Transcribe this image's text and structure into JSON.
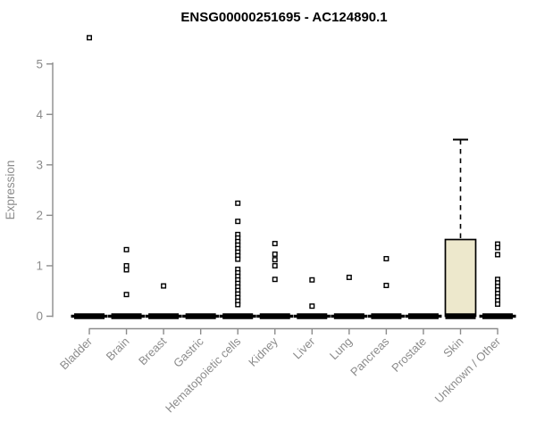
{
  "title": "ENSG00000251695 - AC124890.1",
  "colors": {
    "background": "#FFFFFF",
    "box_fill": "#EDE8CC",
    "axis": "#8C8C8C",
    "tick_label": "#8C8C8C",
    "title": "#000000",
    "data": "#000000",
    "outlier_fill": "#FFFFFF"
  },
  "chart_data": {
    "type": "boxplot",
    "title": "ENSG00000251695 - AC124890.1",
    "xlabel": "",
    "ylabel": "Expression",
    "ylim": [
      0,
      5.6
    ],
    "yticks": [
      0,
      1,
      2,
      3,
      4,
      5
    ],
    "grid": false,
    "legend": "none",
    "categories": [
      "Bladder",
      "Brain",
      "Breast",
      "Gastric",
      "Hematopoietic cells",
      "Kidney",
      "Liver",
      "Lung",
      "Pancreas",
      "Prostate",
      "Skin",
      "Unknown / Other"
    ],
    "series": [
      {
        "name": "Bladder",
        "q1": 0,
        "median": 0,
        "q3": 0,
        "whisker_low": 0,
        "whisker_high": 0,
        "outliers": [
          5.52
        ]
      },
      {
        "name": "Brain",
        "q1": 0,
        "median": 0,
        "q3": 0,
        "whisker_low": 0,
        "whisker_high": 0,
        "outliers": [
          1.32,
          1.0,
          0.92,
          0.43
        ]
      },
      {
        "name": "Breast",
        "q1": 0,
        "median": 0,
        "q3": 0,
        "whisker_low": 0,
        "whisker_high": 0,
        "outliers": [
          0.6
        ]
      },
      {
        "name": "Gastric",
        "q1": 0,
        "median": 0,
        "q3": 0,
        "whisker_low": 0,
        "whisker_high": 0,
        "outliers": []
      },
      {
        "name": "Hematopoietic cells",
        "q1": 0,
        "median": 0,
        "q3": 0,
        "whisker_low": 0,
        "whisker_high": 0,
        "outliers": [
          2.24,
          1.88,
          1.62,
          1.55,
          1.48,
          1.41,
          1.34,
          1.27,
          1.2,
          1.13,
          0.93,
          0.86,
          0.79,
          0.72,
          0.65,
          0.58,
          0.51,
          0.44,
          0.37,
          0.3,
          0.23
        ]
      },
      {
        "name": "Kidney",
        "q1": 0,
        "median": 0,
        "q3": 0,
        "whisker_low": 0,
        "whisker_high": 0,
        "outliers": [
          1.44,
          1.23,
          1.12,
          1.0,
          0.73
        ]
      },
      {
        "name": "Liver",
        "q1": 0,
        "median": 0,
        "q3": 0,
        "whisker_low": 0,
        "whisker_high": 0,
        "outliers": [
          0.72,
          0.2
        ]
      },
      {
        "name": "Lung",
        "q1": 0,
        "median": 0,
        "q3": 0,
        "whisker_low": 0,
        "whisker_high": 0,
        "outliers": [
          0.77
        ]
      },
      {
        "name": "Pancreas",
        "q1": 0,
        "median": 0,
        "q3": 0,
        "whisker_low": 0,
        "whisker_high": 0,
        "outliers": [
          1.14,
          0.61
        ]
      },
      {
        "name": "Prostate",
        "q1": 0,
        "median": 0,
        "q3": 0,
        "whisker_low": 0,
        "whisker_high": 0,
        "outliers": []
      },
      {
        "name": "Skin",
        "q1": 0,
        "median": 0,
        "q3": 1.52,
        "whisker_low": 0,
        "whisker_high": 3.5,
        "outliers": []
      },
      {
        "name": "Unknown / Other",
        "q1": 0,
        "median": 0,
        "q3": 0,
        "whisker_low": 0,
        "whisker_high": 0,
        "outliers": [
          1.43,
          1.36,
          1.22,
          0.73,
          0.66,
          0.59,
          0.52,
          0.45,
          0.38,
          0.31,
          0.24
        ]
      }
    ]
  }
}
